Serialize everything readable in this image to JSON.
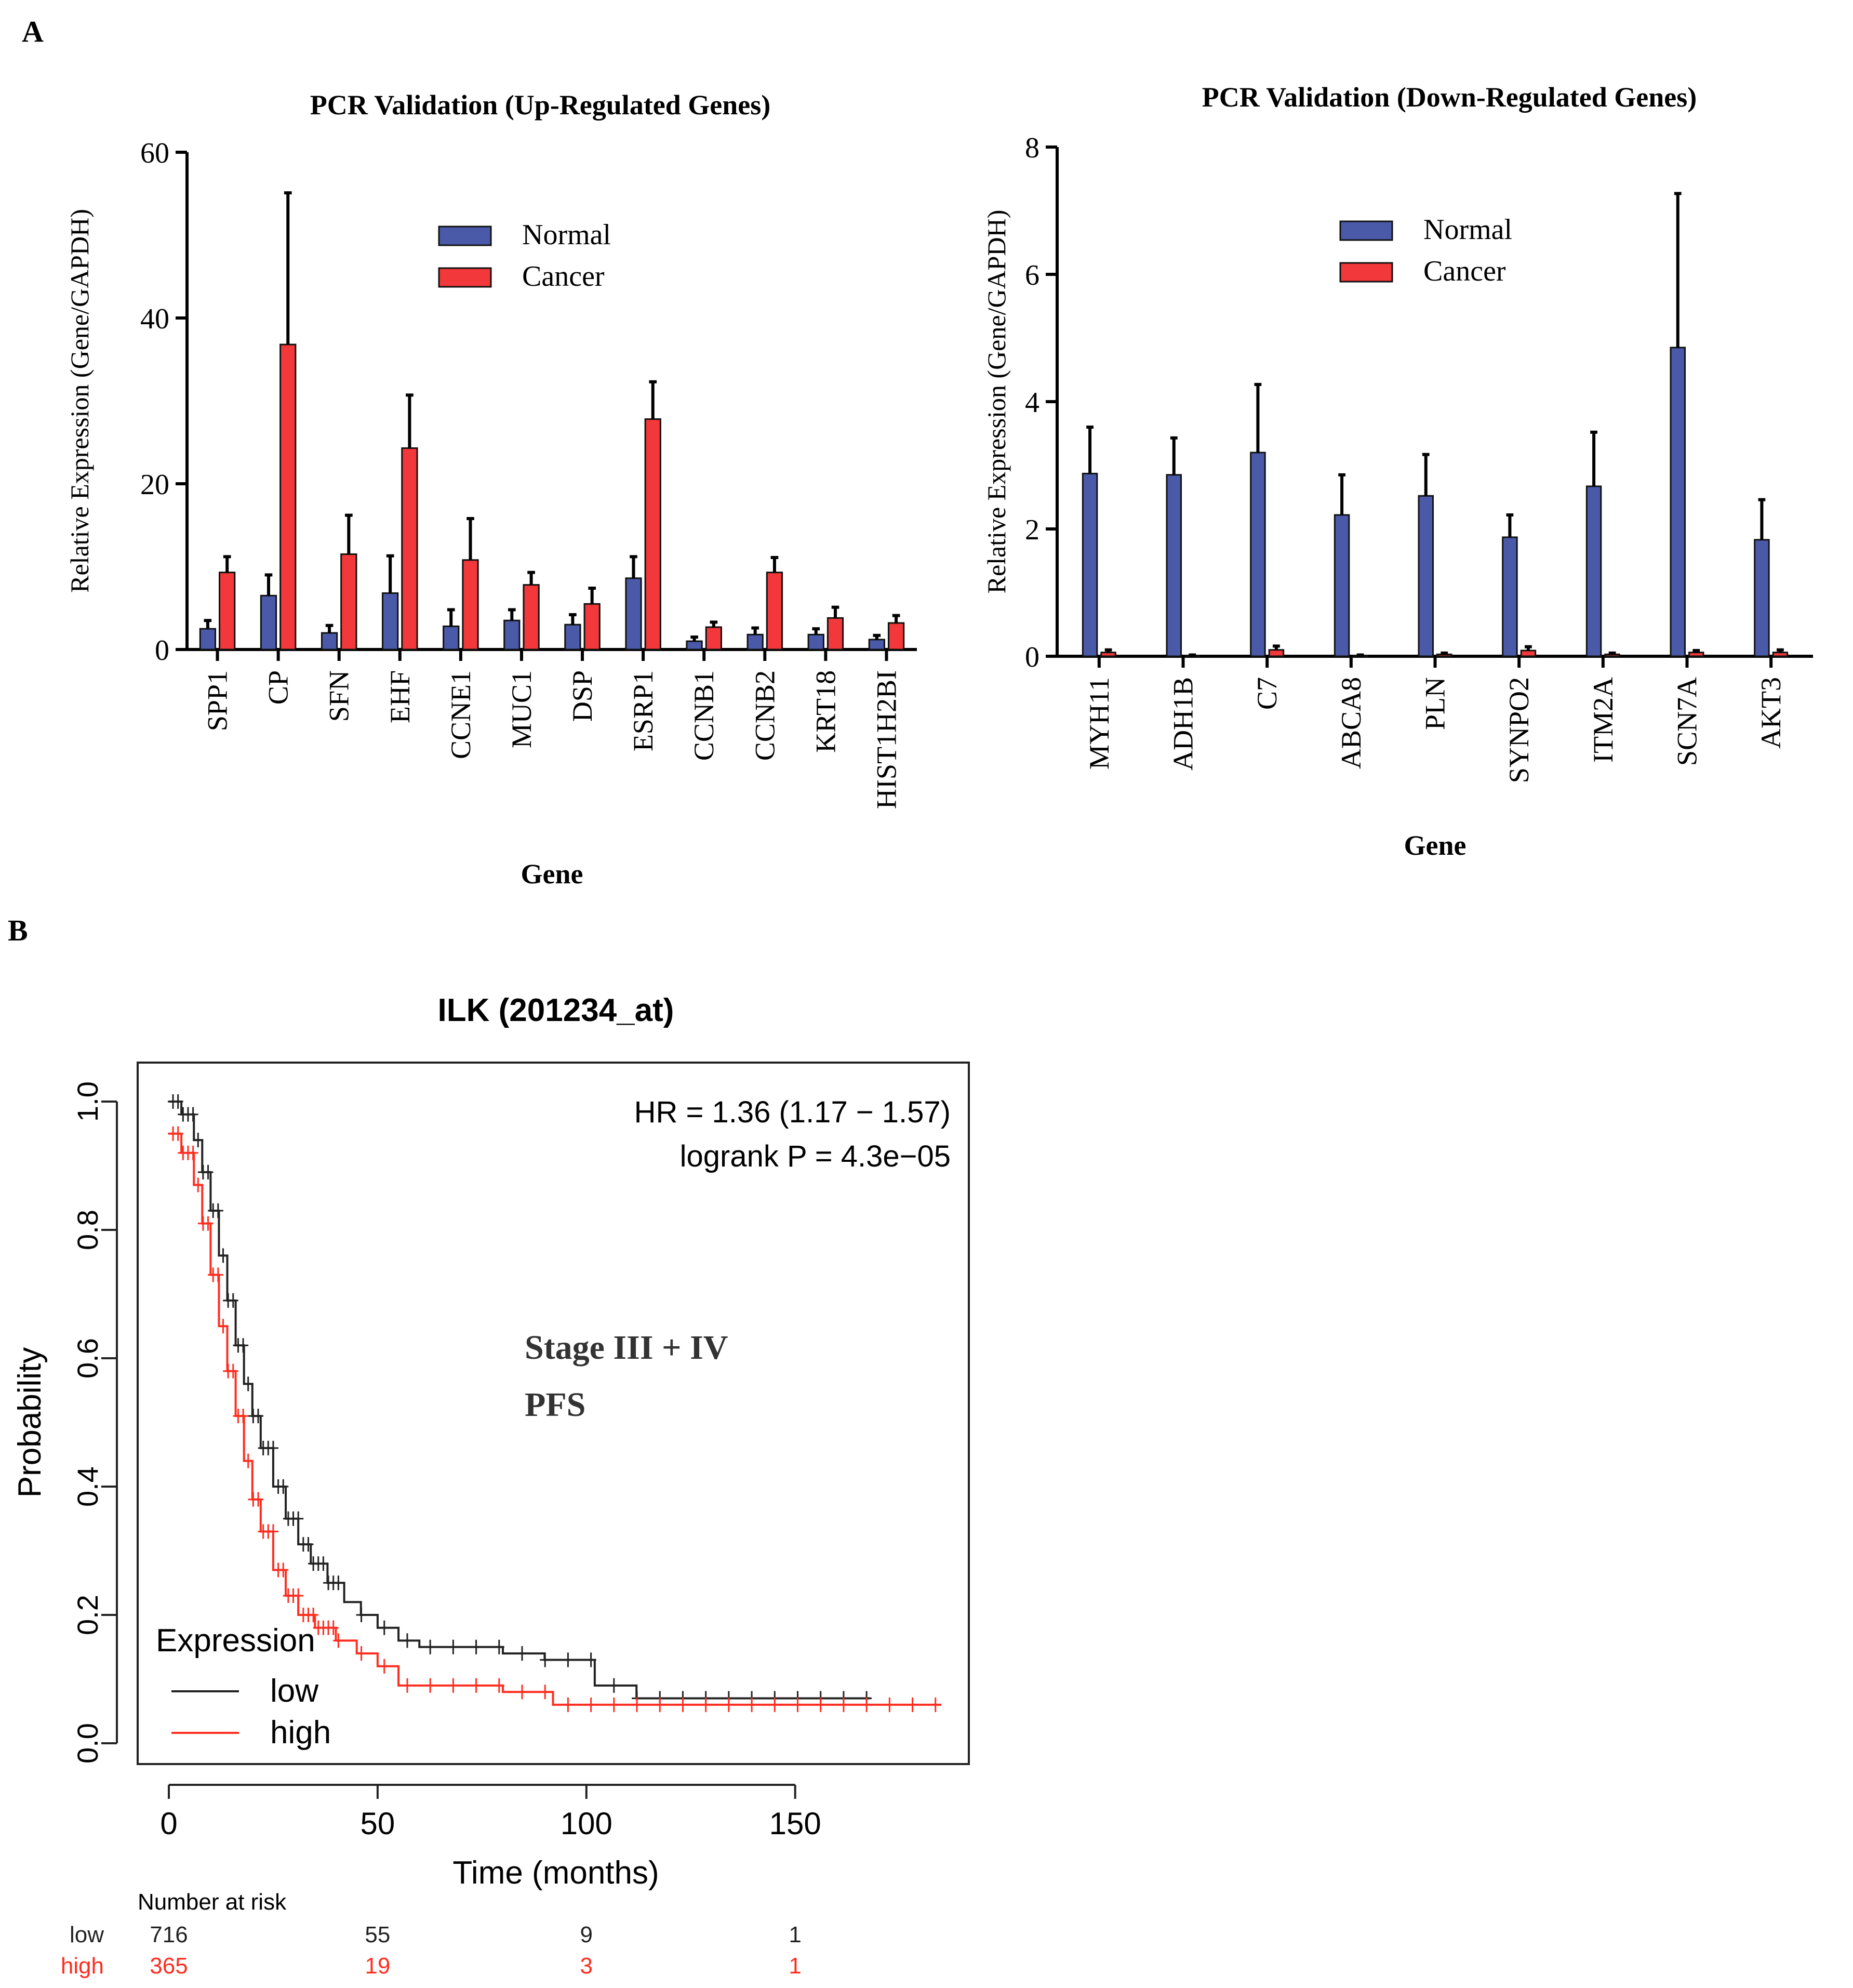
{
  "panel_labels": {
    "a": "A",
    "b": "B"
  },
  "colors": {
    "normal": "#4a5aa8",
    "cancer": "#f2383a",
    "low": "#222222",
    "high": "#ff2d1f",
    "axis": "#000000"
  },
  "chart_data": [
    {
      "id": "up",
      "type": "bar",
      "title": "PCR Validation (Up-Regulated  Genes)",
      "xlabel": "Gene",
      "ylabel": "Relative  Expression (Gene/GAPDH)",
      "ylim": [
        0,
        60
      ],
      "yticks": [
        "0",
        "20",
        "40",
        "60"
      ],
      "categories": [
        "SPP1",
        "CP",
        "SFN",
        "EHF",
        "CCNE1",
        "MUC1",
        "DSP",
        "ESRP1",
        "CCNB1",
        "CCNB2",
        "KRT18",
        "HIST1H2BI"
      ],
      "series": [
        {
          "name": "Normal",
          "values": [
            2.5,
            6.5,
            2.0,
            6.8,
            2.8,
            3.5,
            3.0,
            8.6,
            1.0,
            1.8,
            1.8,
            1.2
          ],
          "errors": [
            1.0,
            2.5,
            0.9,
            4.5,
            2.0,
            1.3,
            1.2,
            2.6,
            0.5,
            0.8,
            0.7,
            0.5
          ]
        },
        {
          "name": "Cancer",
          "values": [
            9.3,
            36.8,
            11.5,
            24.3,
            10.8,
            7.8,
            5.5,
            27.8,
            2.7,
            9.3,
            3.8,
            3.2
          ],
          "errors": [
            1.9,
            18.3,
            4.7,
            6.4,
            5.0,
            1.5,
            1.9,
            4.5,
            0.6,
            1.8,
            1.3,
            0.9
          ]
        }
      ]
    },
    {
      "id": "down",
      "type": "bar",
      "title": "PCR Validation (Down-Regulated  Genes)",
      "xlabel": "Gene",
      "ylabel": "Relative Expression (Gene/GAPDH)",
      "ylim": [
        0,
        8
      ],
      "yticks": [
        "0",
        "2",
        "4",
        "6",
        "8"
      ],
      "categories": [
        "MYH11",
        "ADH1B",
        "C7",
        "ABCA8",
        "PLN",
        "SYNPO2",
        "ITM2A",
        "SCN7A",
        "AKT3"
      ],
      "series": [
        {
          "name": "Normal",
          "values": [
            2.87,
            2.85,
            3.2,
            2.22,
            2.52,
            1.87,
            2.67,
            4.85,
            1.83
          ],
          "errors": [
            0.73,
            0.58,
            1.07,
            0.63,
            0.65,
            0.35,
            0.85,
            2.42,
            0.63
          ]
        },
        {
          "name": "Cancer",
          "values": [
            0.06,
            0.01,
            0.1,
            0.01,
            0.03,
            0.09,
            0.03,
            0.06,
            0.06
          ],
          "errors": [
            0.04,
            0.01,
            0.06,
            0.01,
            0.02,
            0.06,
            0.02,
            0.03,
            0.04
          ]
        }
      ]
    },
    {
      "id": "km",
      "type": "line",
      "title": "ILK (201234_at)",
      "xlabel": "Time (months)",
      "ylabel": "Probability",
      "xlim": [
        0,
        185
      ],
      "ylim": [
        0,
        1
      ],
      "xticks": [
        "0",
        "50",
        "100",
        "150"
      ],
      "yticks": [
        "0.0",
        "0.2",
        "0.4",
        "0.6",
        "0.8",
        "1.0"
      ],
      "hr": "HR = 1.36 (1.17 − 1.57)",
      "logrank": "logrank P = 4.3e−05",
      "annotation_1": "Stage III + IV",
      "annotation_2": "PFS",
      "legend_title": "Expression",
      "series": [
        {
          "name": "low",
          "points": [
            [
              0,
              1.0
            ],
            [
              3,
              0.98
            ],
            [
              6,
              0.94
            ],
            [
              8,
              0.89
            ],
            [
              10,
              0.83
            ],
            [
              12,
              0.76
            ],
            [
              14,
              0.69
            ],
            [
              16,
              0.62
            ],
            [
              18,
              0.56
            ],
            [
              20,
              0.51
            ],
            [
              22,
              0.46
            ],
            [
              25,
              0.4
            ],
            [
              28,
              0.35
            ],
            [
              31,
              0.31
            ],
            [
              34,
              0.28
            ],
            [
              38,
              0.25
            ],
            [
              42,
              0.22
            ],
            [
              46,
              0.2
            ],
            [
              50,
              0.18
            ],
            [
              55,
              0.16
            ],
            [
              60,
              0.15
            ],
            [
              70,
              0.15
            ],
            [
              80,
              0.14
            ],
            [
              90,
              0.13
            ],
            [
              100,
              0.13
            ],
            [
              102,
              0.09
            ],
            [
              112,
              0.07
            ],
            [
              168,
              0.07
            ]
          ]
        },
        {
          "name": "high",
          "points": [
            [
              0,
              0.95
            ],
            [
              3,
              0.92
            ],
            [
              6,
              0.87
            ],
            [
              8,
              0.81
            ],
            [
              10,
              0.73
            ],
            [
              12,
              0.65
            ],
            [
              14,
              0.58
            ],
            [
              16,
              0.51
            ],
            [
              18,
              0.44
            ],
            [
              20,
              0.38
            ],
            [
              22,
              0.33
            ],
            [
              25,
              0.27
            ],
            [
              28,
              0.23
            ],
            [
              31,
              0.2
            ],
            [
              35,
              0.18
            ],
            [
              40,
              0.16
            ],
            [
              45,
              0.14
            ],
            [
              50,
              0.12
            ],
            [
              55,
              0.09
            ],
            [
              60,
              0.09
            ],
            [
              80,
              0.08
            ],
            [
              91,
              0.08
            ],
            [
              92,
              0.06
            ],
            [
              185,
              0.06
            ]
          ]
        }
      ],
      "risk_table": {
        "header": "Number at risk",
        "times": [
          0,
          50,
          100,
          150
        ],
        "rows": [
          {
            "label": "low",
            "values": [
              "716",
              "55",
              "9",
              "1"
            ]
          },
          {
            "label": "high",
            "values": [
              "365",
              "19",
              "3",
              "1"
            ]
          }
        ]
      }
    }
  ]
}
